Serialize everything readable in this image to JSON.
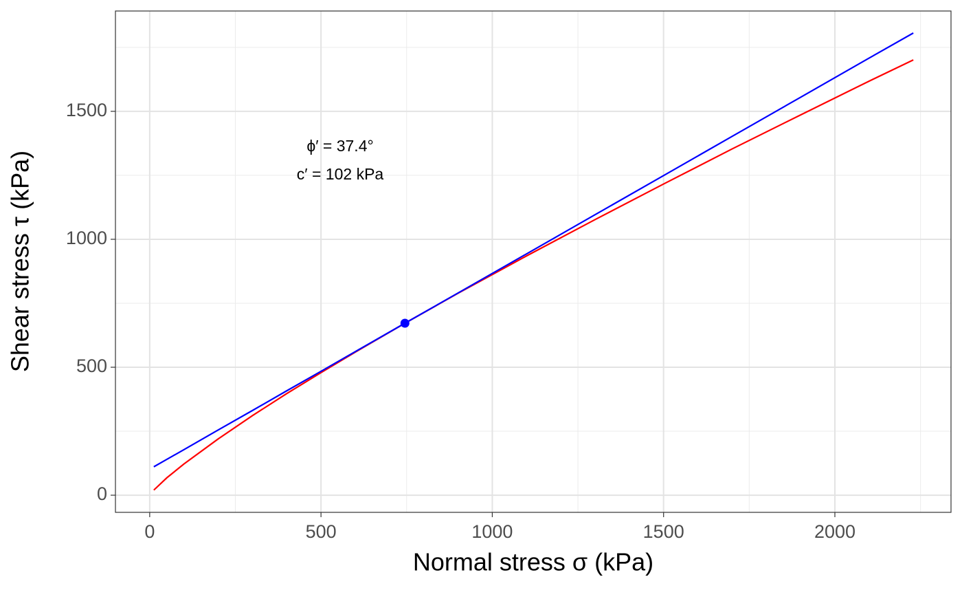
{
  "chart_data": {
    "type": "line",
    "x_label": "Normal stress σ (kPa)",
    "y_label": "Shear stress τ (kPa)",
    "annotations": [
      "ϕ′ = 37.4°",
      "c′ = 102 kPa"
    ],
    "x": [
      12,
      50,
      100,
      200,
      300,
      400,
      500,
      600,
      745,
      900,
      1100,
      1300,
      1500,
      1700,
      1900,
      2100,
      2229
    ],
    "series": [
      {
        "color": "#ff0000",
        "values": [
          20,
          68,
          122,
          220,
          311,
          397,
          479,
          559,
          672,
          789,
          935,
          1077,
          1216,
          1353,
          1486,
          1618,
          1701
        ]
      },
      {
        "color": "#0000ff",
        "values": [
          111,
          140,
          178,
          255,
          331,
          408,
          484,
          561,
          672,
          790,
          943,
          1096,
          1249,
          1402,
          1555,
          1708,
          1806
        ]
      }
    ],
    "point": {
      "x": 745,
      "y": 672,
      "color": "#0000ff"
    },
    "xlim": [
      -100,
      2339
    ],
    "ylim": [
      -67,
      1892
    ],
    "xticks": [
      0,
      500,
      1000,
      1500,
      2000
    ],
    "yticks": [
      0,
      500,
      1000,
      1500
    ],
    "xminor": [
      250,
      750,
      1250,
      1750,
      2250
    ],
    "yminor": [
      250,
      750,
      1250,
      1750
    ],
    "grid": true
  }
}
